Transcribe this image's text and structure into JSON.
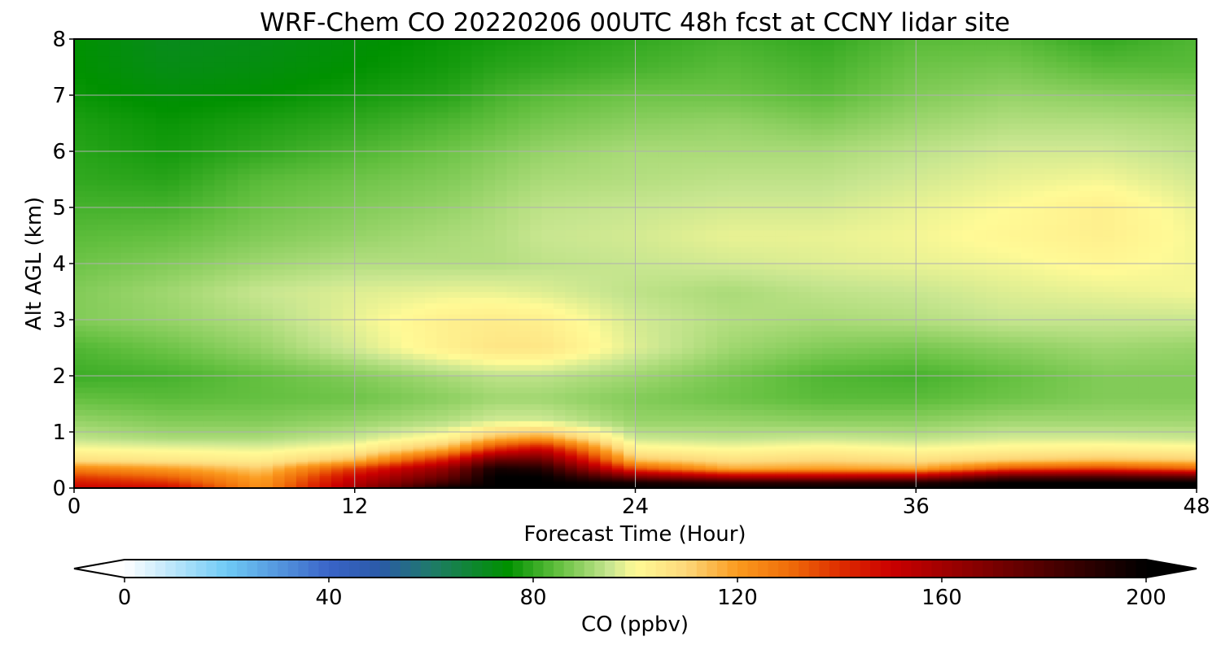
{
  "chart_data": {
    "type": "heatmap",
    "title": "WRF-Chem CO  20220206 00UTC 48h fcst at CCNY lidar site",
    "xlabel": "Forecast Time (Hour)",
    "ylabel": "Alt AGL (km)",
    "xlim": [
      0,
      48
    ],
    "ylim": [
      0,
      8
    ],
    "x_ticks": [
      "0",
      "12",
      "24",
      "36",
      "48"
    ],
    "y_ticks": [
      "0",
      "1",
      "2",
      "3",
      "4",
      "5",
      "6",
      "7",
      "8"
    ],
    "grid": true,
    "x": [
      0,
      4,
      8,
      12,
      16,
      18,
      20,
      24,
      28,
      32,
      36,
      40,
      44,
      48
    ],
    "y": [
      0,
      0.1,
      0.2,
      0.35,
      0.5,
      0.7,
      0.9,
      1.2,
      1.6,
      2.0,
      2.5,
      3.0,
      3.5,
      4.0,
      4.5,
      5.0,
      5.5,
      6.0,
      6.5,
      7.0,
      7.5,
      8.0
    ],
    "values": [
      [
        150,
        150,
        122,
        160,
        200,
        200,
        200,
        200,
        200,
        200,
        200,
        200,
        200,
        200
      ],
      [
        145,
        140,
        120,
        155,
        185,
        200,
        200,
        195,
        190,
        190,
        192,
        200,
        200,
        200
      ],
      [
        138,
        132,
        118,
        150,
        175,
        200,
        200,
        170,
        158,
        158,
        160,
        180,
        182,
        178
      ],
      [
        125,
        120,
        112,
        138,
        165,
        195,
        192,
        135,
        118,
        120,
        118,
        135,
        138,
        132
      ],
      [
        108,
        106,
        104,
        115,
        145,
        175,
        175,
        114,
        108,
        110,
        108,
        112,
        114,
        112
      ],
      [
        100,
        99,
        98,
        102,
        118,
        140,
        150,
        102,
        100,
        102,
        100,
        102,
        103,
        102
      ],
      [
        94,
        92,
        92,
        95,
        102,
        115,
        120,
        95,
        94,
        95,
        94,
        96,
        96,
        95
      ],
      [
        90,
        88,
        88,
        90,
        93,
        96,
        96,
        90,
        90,
        89,
        89,
        91,
        91,
        91
      ],
      [
        85,
        84,
        85,
        86,
        89,
        91,
        91,
        88,
        86,
        84,
        84,
        86,
        88,
        88
      ],
      [
        81,
        82,
        85,
        88,
        92,
        94,
        94,
        91,
        87,
        83,
        82,
        85,
        88,
        88
      ],
      [
        83,
        86,
        90,
        96,
        103,
        106,
        106,
        97,
        91,
        88,
        87,
        89,
        91,
        90
      ],
      [
        88,
        90,
        93,
        98,
        103,
        104,
        103,
        96,
        93,
        92,
        93,
        95,
        95,
        95
      ],
      [
        88,
        91,
        95,
        97,
        98,
        98,
        97,
        94,
        92,
        94,
        95,
        97,
        98,
        99
      ],
      [
        86,
        88,
        91,
        93,
        93,
        93,
        94,
        95,
        96,
        97,
        98,
        99,
        101,
        99
      ],
      [
        84,
        85,
        88,
        90,
        92,
        93,
        95,
        96,
        98,
        98,
        99,
        101,
        103,
        99
      ],
      [
        82,
        82,
        86,
        88,
        90,
        92,
        94,
        95,
        96,
        96,
        98,
        100,
        103,
        98
      ],
      [
        80,
        79,
        84,
        86,
        88,
        90,
        92,
        93,
        94,
        94,
        96,
        98,
        99,
        96
      ],
      [
        79,
        77,
        80,
        83,
        86,
        88,
        90,
        92,
        92,
        92,
        94,
        96,
        96,
        94
      ],
      [
        78,
        76,
        78,
        80,
        83,
        85,
        87,
        89,
        90,
        88,
        91,
        93,
        93,
        92
      ],
      [
        76,
        74,
        75,
        77,
        79,
        82,
        84,
        86,
        86,
        84,
        88,
        90,
        89,
        88
      ],
      [
        75,
        72,
        73,
        75,
        77,
        79,
        80,
        82,
        84,
        82,
        86,
        87,
        84,
        84
      ],
      [
        75,
        71,
        72,
        74,
        76,
        77,
        78,
        80,
        82,
        80,
        84,
        84,
        80,
        83
      ]
    ],
    "colorbar": {
      "label": "CO  (ppbv)",
      "min": 0,
      "max": 200,
      "ticks": [
        "0",
        "40",
        "80",
        "120",
        "160",
        "200"
      ],
      "extend": "both",
      "stops": [
        {
          "v": 0,
          "color": "#ffffff"
        },
        {
          "v": 20,
          "color": "#6fcaf5"
        },
        {
          "v": 40,
          "color": "#3a64c8"
        },
        {
          "v": 50,
          "color": "#2a5aa8"
        },
        {
          "v": 60,
          "color": "#1f7a6a"
        },
        {
          "v": 75,
          "color": "#009100"
        },
        {
          "v": 85,
          "color": "#64c040"
        },
        {
          "v": 95,
          "color": "#c8e690"
        },
        {
          "v": 100,
          "color": "#fffa96"
        },
        {
          "v": 110,
          "color": "#fdd87a"
        },
        {
          "v": 120,
          "color": "#fb9a1e"
        },
        {
          "v": 130,
          "color": "#f06e0a"
        },
        {
          "v": 140,
          "color": "#de2d00"
        },
        {
          "v": 150,
          "color": "#cb0000"
        },
        {
          "v": 165,
          "color": "#8e0000"
        },
        {
          "v": 185,
          "color": "#3c0000"
        },
        {
          "v": 200,
          "color": "#000000"
        }
      ]
    }
  }
}
